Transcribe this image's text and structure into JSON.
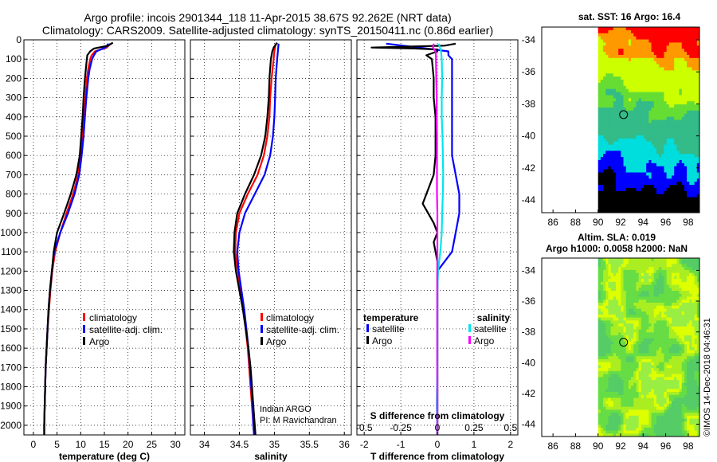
{
  "header": {
    "line1": "Argo profile: incois 2901344_118 11-Apr-2015 38.67S 92.262E (NRT data)",
    "line2": "Climatology: CARS2009. Satellite-adjusted climatology: synTS_20150411.nc (0.86d earlier)"
  },
  "colors": {
    "climatology": "#ff0000",
    "satellite": "#0000ff",
    "argo": "#000000",
    "sat_salinity": "#00e5ee",
    "argo_salinity": "#ff00ff"
  },
  "chart_data": [
    {
      "type": "line",
      "id": "temperature",
      "xlabel": "temperature (deg C)",
      "ylabel": "",
      "xlim": [
        -2,
        32
      ],
      "ylim": [
        2050,
        0
      ],
      "x_ticks": [
        "0",
        "5",
        "10",
        "15",
        "20",
        "25",
        "30"
      ],
      "y_ticks": [
        "0",
        "100",
        "200",
        "300",
        "400",
        "500",
        "600",
        "700",
        "800",
        "900",
        "1000",
        "1100",
        "1200",
        "1300",
        "1400",
        "1500",
        "1600",
        "1700",
        "1800",
        "1900",
        "2000"
      ],
      "grid": true,
      "legend": {
        "position": "center-right",
        "entries": [
          "climatology",
          "satellite-adj. clim.",
          "Argo"
        ]
      },
      "series": [
        {
          "name": "climatology",
          "color": "#ff0000",
          "depth": [
            20,
            40,
            60,
            80,
            100,
            150,
            200,
            300,
            400,
            500,
            600,
            700,
            800,
            900,
            1000,
            1100,
            1200,
            1300,
            1400,
            1500,
            1600,
            1700,
            1800,
            1900,
            2000,
            2050
          ],
          "values": [
            16.3,
            15.5,
            13.0,
            12.3,
            12.0,
            11.6,
            11.3,
            11.0,
            10.7,
            10.4,
            10.0,
            9.5,
            8.4,
            7.0,
            5.7,
            4.6,
            4.0,
            3.6,
            3.3,
            3.0,
            2.8,
            2.6,
            2.5,
            2.4,
            2.3,
            2.3
          ]
        },
        {
          "name": "satellite-adj. clim.",
          "color": "#0000ff",
          "depth": [
            20,
            40,
            60,
            80,
            100,
            150,
            200,
            300,
            400,
            500,
            600,
            700,
            800,
            900,
            1000,
            1100,
            1200,
            1300,
            1400,
            1500,
            1600,
            1700,
            1800,
            1900,
            2000,
            2050
          ],
          "values": [
            15.9,
            15.2,
            13.3,
            12.8,
            12.4,
            11.9,
            11.6,
            11.2,
            10.9,
            10.6,
            10.2,
            9.7,
            8.7,
            7.3,
            5.7,
            4.4,
            3.9,
            3.5,
            3.2,
            3.0,
            2.8,
            2.6,
            2.5,
            2.4,
            2.3,
            2.3
          ]
        },
        {
          "name": "Argo",
          "color": "#000000",
          "depth": [
            15,
            30,
            45,
            60,
            80,
            100,
            150,
            200,
            300,
            400,
            500,
            600,
            700,
            800,
            900,
            1000,
            1100,
            1200,
            1300,
            1400,
            1500,
            1600,
            1700,
            1800,
            1900,
            2000,
            2050
          ],
          "values": [
            16.8,
            15.8,
            12.8,
            12.0,
            11.4,
            11.3,
            11.1,
            10.9,
            10.6,
            10.4,
            10.1,
            9.8,
            9.1,
            7.9,
            6.5,
            5.0,
            4.3,
            3.9,
            3.5,
            3.2,
            3.0,
            2.8,
            2.6,
            2.5,
            2.4,
            2.3,
            2.3
          ]
        }
      ]
    },
    {
      "type": "line",
      "id": "salinity",
      "xlabel": "salinity",
      "ylabel": "",
      "xlim": [
        33.8,
        36.1
      ],
      "ylim": [
        2050,
        0
      ],
      "x_ticks": [
        "34",
        "34.5",
        "35",
        "35.5",
        "36"
      ],
      "grid": true,
      "legend": {
        "position": "center-right",
        "entries": [
          "climatology",
          "satellite-adj. clim.",
          "Argo"
        ]
      },
      "series": [
        {
          "name": "climatology",
          "color": "#ff0000",
          "depth": [
            20,
            60,
            100,
            200,
            300,
            400,
            500,
            600,
            700,
            800,
            900,
            1000,
            1100,
            1200,
            1300,
            1400,
            1500,
            1600,
            1700,
            1800,
            1900,
            2000,
            2050
          ],
          "values": [
            35.02,
            35.0,
            34.99,
            34.96,
            34.94,
            34.93,
            34.9,
            34.85,
            34.76,
            34.62,
            34.5,
            34.45,
            34.44,
            34.48,
            34.52,
            34.56,
            34.59,
            34.62,
            34.64,
            34.66,
            34.68,
            34.7,
            34.71
          ]
        },
        {
          "name": "satellite-adj. clim.",
          "color": "#0000ff",
          "depth": [
            20,
            60,
            100,
            200,
            300,
            400,
            500,
            600,
            700,
            800,
            900,
            1000,
            1100,
            1200,
            1300,
            1400,
            1500,
            1600,
            1700,
            1800,
            1900,
            2000,
            2050
          ],
          "values": [
            35.06,
            35.05,
            35.04,
            35.02,
            35.01,
            35.0,
            34.98,
            34.94,
            34.86,
            34.72,
            34.58,
            34.5,
            34.47,
            34.49,
            34.53,
            34.57,
            34.6,
            34.63,
            34.65,
            34.67,
            34.69,
            34.7,
            34.71
          ]
        },
        {
          "name": "Argo",
          "color": "#000000",
          "depth": [
            15,
            40,
            60,
            80,
            100,
            200,
            300,
            400,
            500,
            600,
            700,
            800,
            900,
            1000,
            1100,
            1200,
            1300,
            1400,
            1500,
            1600,
            1700,
            1800,
            1900,
            2000,
            2050
          ],
          "values": [
            35.04,
            34.99,
            34.97,
            34.96,
            34.95,
            34.93,
            34.92,
            34.9,
            34.87,
            34.81,
            34.71,
            34.58,
            34.47,
            34.43,
            34.42,
            34.45,
            34.5,
            34.55,
            34.59,
            34.63,
            34.66,
            34.68,
            34.7,
            34.72,
            34.73
          ]
        }
      ],
      "annotation": {
        "line1": "Indian ARGO",
        "line2": "PI: M Ravichandran"
      }
    },
    {
      "type": "line",
      "id": "difference",
      "xlabel": "T difference from climatology",
      "secondary_xlabel": "S difference from climatology",
      "xlim": [
        -2.2,
        2.2
      ],
      "ylim": [
        2050,
        0
      ],
      "x_ticks": [
        "-2",
        "-1",
        "0",
        "1",
        "2"
      ],
      "secondary_x_ticks": [
        "-0.5",
        "-0.25",
        "0",
        "0.25",
        "0.5"
      ],
      "grid": true,
      "legend": {
        "position": "center",
        "group_titles": [
          "temperature",
          "salinity"
        ],
        "entries": [
          "satellite",
          "Argo",
          "satellite",
          "Argo"
        ]
      },
      "series": [
        {
          "name": "temperature satellite",
          "color": "#0000ff",
          "depth": [
            20,
            45,
            60,
            80,
            100,
            200,
            300,
            400,
            500,
            600,
            700,
            800,
            900,
            1000,
            1100,
            1150,
            1200,
            1300,
            1500,
            1700,
            1900,
            2050
          ],
          "values": [
            -1.4,
            -0.3,
            0.3,
            0.3,
            0.4,
            0.4,
            0.4,
            0.4,
            0.4,
            0.4,
            0.5,
            0.6,
            0.6,
            0.5,
            0.4,
            0.2,
            0.0,
            0.0,
            0.0,
            0.0,
            0.0,
            0.0
          ]
        },
        {
          "name": "temperature Argo",
          "color": "#000000",
          "depth": [
            20,
            30,
            40,
            45,
            50,
            60,
            80,
            100,
            200,
            300,
            400,
            500,
            600,
            700,
            800,
            850,
            900,
            950,
            1000,
            1050,
            1100,
            1150,
            1200,
            1300,
            1500,
            1700,
            1900,
            2050
          ],
          "values": [
            0.5,
            0.2,
            -1.8,
            -0.6,
            0.0,
            0.0,
            -0.3,
            -0.15,
            -0.1,
            -0.1,
            -0.05,
            -0.05,
            -0.05,
            -0.1,
            -0.3,
            -0.4,
            -0.25,
            -0.1,
            0.0,
            -0.1,
            -0.05,
            0.0,
            0.0,
            0.0,
            0.0,
            0.0,
            0.0,
            0.0
          ]
        },
        {
          "name": "salinity satellite",
          "color": "#00e5ee",
          "depth": [
            20,
            60,
            100,
            200,
            300,
            400,
            500,
            600,
            700,
            800,
            900,
            1000,
            1100,
            1200,
            1300,
            1400,
            1500,
            1600,
            1700,
            1800,
            1900,
            2050
          ],
          "values": [
            0.04,
            0.1,
            0.12,
            0.13,
            0.12,
            0.12,
            0.14,
            0.15,
            0.16,
            0.15,
            0.13,
            0.12,
            0.08,
            0.02,
            0.0,
            0.0,
            0.0,
            0.0,
            0.0,
            -0.01,
            -0.02,
            0.0
          ]
        },
        {
          "name": "salinity Argo",
          "color": "#ff00ff",
          "depth": [
            20,
            40,
            60,
            80,
            100,
            200,
            300,
            400,
            500,
            600,
            700,
            800,
            900,
            1000,
            1100,
            1200,
            1300,
            1500,
            1700,
            1900,
            2050
          ],
          "values": [
            -0.1,
            -0.12,
            -0.05,
            -0.04,
            -0.04,
            -0.03,
            -0.02,
            -0.02,
            -0.01,
            -0.01,
            -0.01,
            -0.01,
            0.0,
            0.0,
            0.0,
            0.0,
            0.0,
            0.0,
            0.0,
            0.0,
            0.0
          ]
        }
      ]
    },
    {
      "type": "heatmap",
      "id": "sst_map",
      "title": "sat. SST: 16 Argo: 16.4",
      "xlim": [
        85,
        99
      ],
      "ylim": [
        -44.8,
        -33.2
      ],
      "x_ticks": [
        "86",
        "88",
        "90",
        "92",
        "94",
        "96",
        "98"
      ],
      "y_ticks": [
        "-34",
        "-36",
        "-38",
        "-40",
        "-42",
        "-44"
      ],
      "data_west_limit": 90,
      "argo_position": {
        "lon": 92.262,
        "lat": -38.67
      }
    },
    {
      "type": "heatmap",
      "id": "sla_map",
      "title": "Altim. SLA: 0.019",
      "subtitle": "Argo h1000: 0.0058 h2000: NaN",
      "xlim": [
        85,
        99
      ],
      "ylim": [
        -44.8,
        -33.2
      ],
      "x_ticks": [
        "86",
        "88",
        "90",
        "92",
        "94",
        "96",
        "98"
      ],
      "y_ticks": [
        "-34",
        "-36",
        "-38",
        "-40",
        "-42",
        "-44"
      ],
      "data_west_limit": 90,
      "argo_position": {
        "lon": 92.262,
        "lat": -38.67
      }
    }
  ],
  "footer": {
    "stamp": "©IMOS 14-Dec-2018 04:46:31"
  }
}
